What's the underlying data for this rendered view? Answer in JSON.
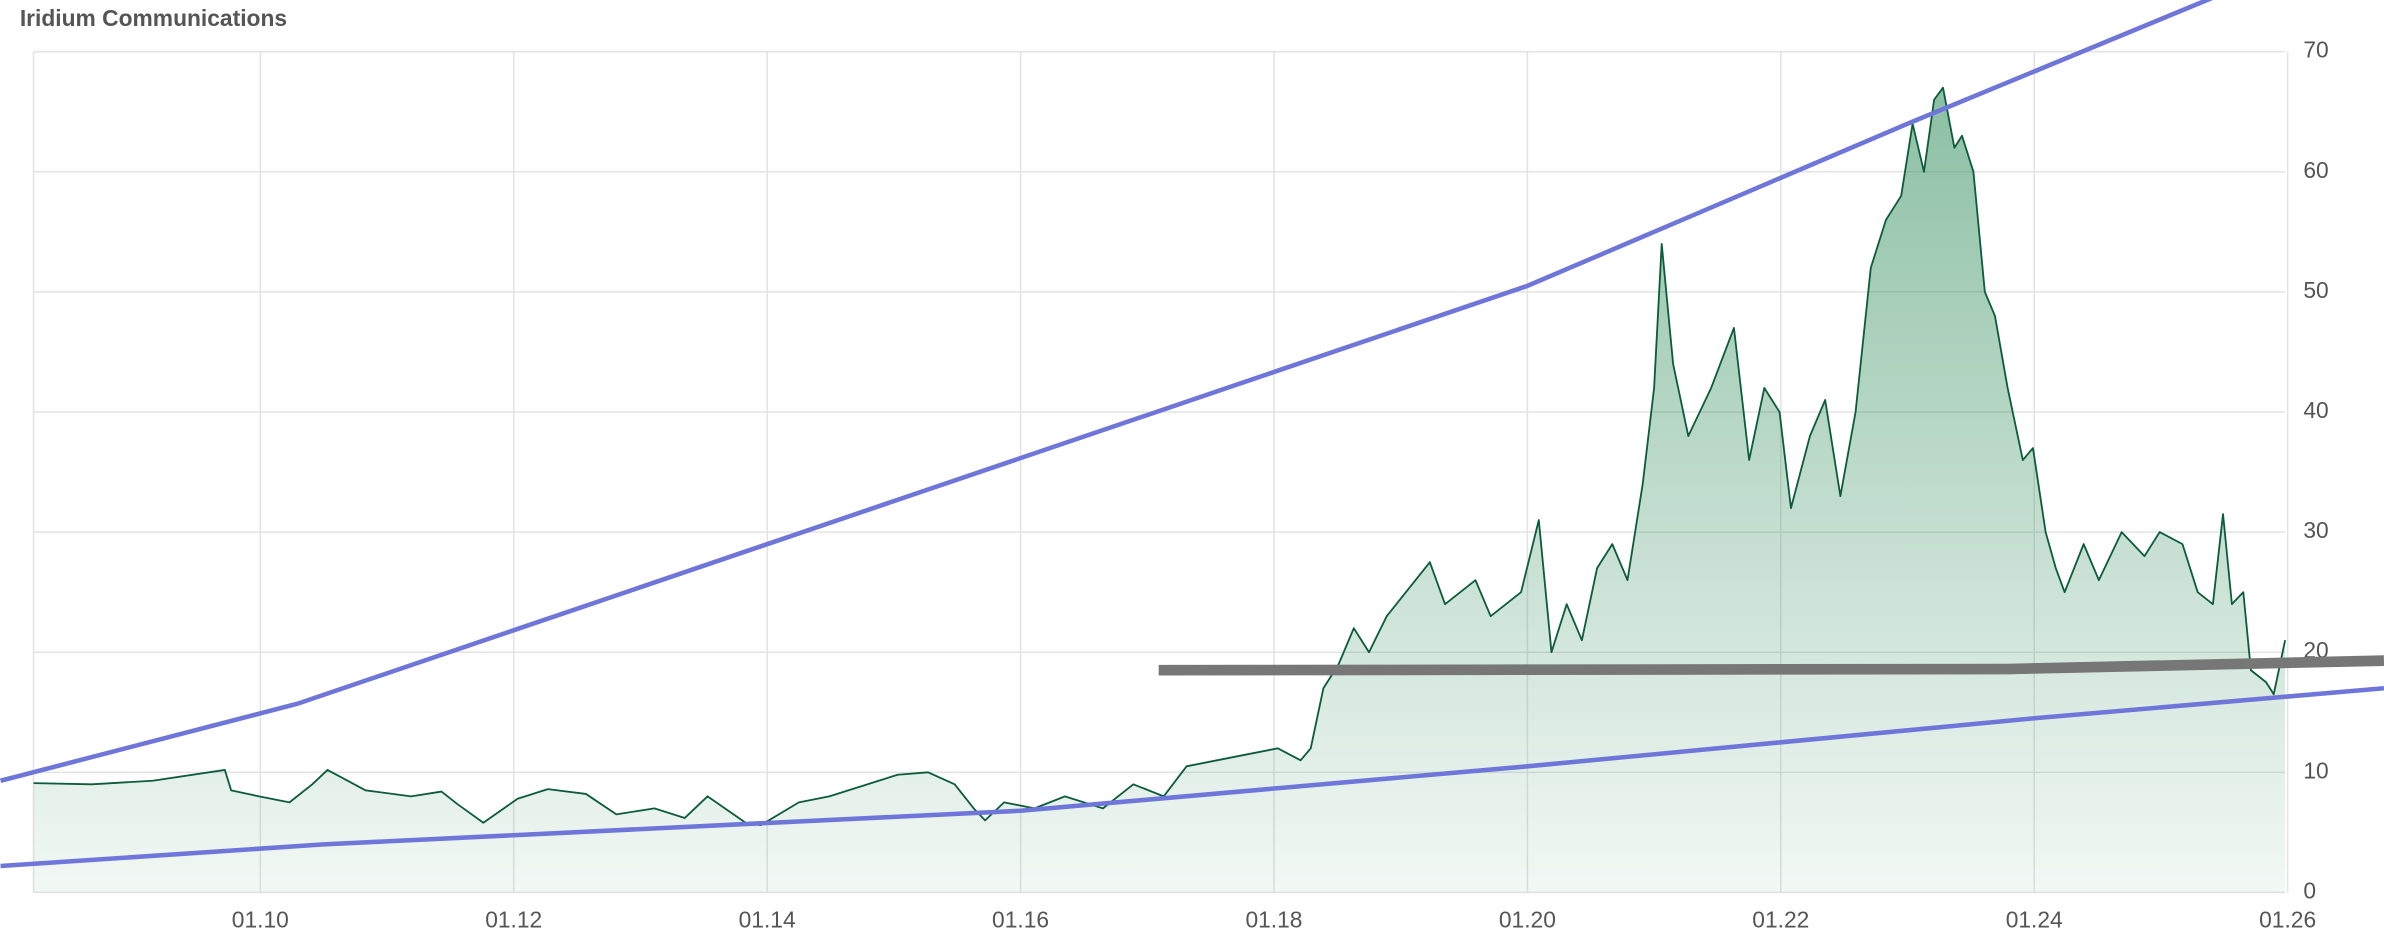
{
  "chart_data": {
    "type": "area",
    "title": "Iridium Communications",
    "xlim": [
      8.21,
      25.98
    ],
    "ylim": [
      0,
      70
    ],
    "xticks": [
      {
        "value": 10,
        "label": "01.10"
      },
      {
        "value": 12,
        "label": "01.12"
      },
      {
        "value": 14,
        "label": "01.14"
      },
      {
        "value": 16,
        "label": "01.16"
      },
      {
        "value": 18,
        "label": "01.18"
      },
      {
        "value": 20,
        "label": "01.20"
      },
      {
        "value": 22,
        "label": "01.22"
      },
      {
        "value": 24,
        "label": "01.24"
      },
      {
        "value": 26,
        "label": "01.26"
      }
    ],
    "yticks": [
      0,
      10,
      20,
      30,
      40,
      50,
      60,
      70
    ],
    "grid": true,
    "x": [
      8.21,
      8.67,
      9.15,
      9.72,
      9.77,
      9.99,
      10.23,
      10.41,
      10.53,
      10.83,
      11.19,
      11.43,
      11.55,
      11.76,
      12.03,
      12.27,
      12.57,
      12.81,
      13.11,
      13.35,
      13.53,
      13.83,
      13.95,
      14.25,
      14.49,
      14.79,
      15.03,
      15.27,
      15.48,
      15.63,
      15.72,
      15.87,
      16.11,
      16.35,
      16.65,
      16.89,
      17.13,
      17.31,
      17.55,
      17.79,
      18.03,
      18.21,
      18.29,
      18.39,
      18.51,
      18.63,
      18.75,
      18.89,
      19.23,
      19.35,
      19.59,
      19.71,
      19.95,
      20.09,
      20.19,
      20.31,
      20.43,
      20.55,
      20.67,
      20.79,
      20.91,
      21.0,
      21.06,
      21.15,
      21.27,
      21.45,
      21.63,
      21.75,
      21.87,
      21.99,
      22.08,
      22.23,
      22.35,
      22.47,
      22.59,
      22.71,
      22.83,
      22.95,
      23.04,
      23.13,
      23.21,
      23.28,
      23.37,
      23.43,
      23.52,
      23.61,
      23.69,
      23.79,
      23.91,
      23.99,
      24.09,
      24.17,
      24.24,
      24.39,
      24.51,
      24.69,
      24.87,
      24.99,
      25.17,
      25.29,
      25.41,
      25.49,
      25.56,
      25.65,
      25.71,
      25.83,
      25.89,
      25.98
    ],
    "series": [
      {
        "color": "#0d5c3a",
        "values": [
          9.1,
          9.0,
          9.3,
          10.2,
          8.5,
          8.0,
          7.5,
          9.0,
          10.2,
          8.5,
          8.0,
          8.4,
          7.4,
          5.8,
          7.8,
          8.6,
          8.2,
          6.5,
          7.0,
          6.2,
          8.0,
          5.8,
          5.6,
          7.5,
          8.0,
          9.0,
          9.8,
          10.0,
          9.0,
          7.0,
          6.0,
          7.5,
          7.0,
          8.0,
          7.0,
          9.0,
          8.0,
          10.5,
          11.0,
          11.5,
          12.0,
          11.0,
          12.0,
          17.0,
          19.0,
          22.0,
          20.0,
          23.0,
          27.5,
          24.0,
          26.0,
          23.0,
          25.0,
          31.0,
          20.0,
          24.0,
          21.0,
          27.0,
          29.0,
          26.0,
          34.0,
          42.0,
          54.0,
          44.0,
          38.0,
          42.0,
          47.0,
          36.0,
          42.0,
          40.0,
          32.0,
          38.0,
          41.0,
          33.0,
          40.0,
          52.0,
          56.0,
          58.0,
          64.0,
          60.0,
          66.0,
          67.0,
          62.0,
          63.0,
          60.0,
          50.0,
          48.0,
          42.0,
          36.0,
          37.0,
          30.0,
          27.0,
          25.0,
          29.0,
          26.0,
          30.0,
          28.0,
          30.0,
          29.0,
          25.0,
          24.0,
          31.5,
          24.0,
          25.0,
          18.5,
          17.5,
          16.5,
          21.0
        ]
      }
    ],
    "trendlines": [
      {
        "color": "#6f76d9",
        "x": [
          7.95,
          10.29,
          20.0,
          23.0,
          25.41
        ],
        "values": [
          9.3,
          15.7,
          50.5,
          64.0,
          74.5
        ]
      },
      {
        "color": "#6f76d9",
        "x": [
          7.95,
          10.5,
          16.0,
          20.0,
          22.0,
          24.0,
          26.76
        ],
        "values": [
          2.2,
          4.0,
          6.8,
          10.5,
          12.5,
          14.5,
          17.0
        ]
      },
      {
        "color": "#777777",
        "x": [
          17.09,
          23.79,
          26.76
        ],
        "values": [
          18.5,
          18.6,
          19.3
        ]
      }
    ]
  }
}
